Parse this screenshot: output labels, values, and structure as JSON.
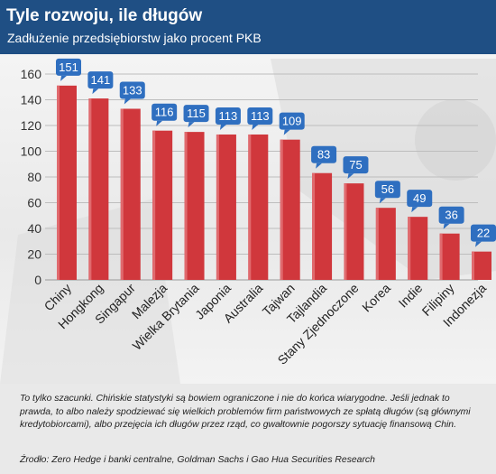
{
  "header": {
    "title": "Tyle rozwoju, ile długów",
    "subtitle": "Zadłużenie przedsiębiorstw jako procent PKB"
  },
  "footer": {
    "note": "To tylko szacunki. Chińskie statystyki są bowiem ograniczone i nie do końca wiarygodne. Jeśli jednak to prawda, to albo należy spodziewać się wielkich problemów firm państwowych ze spłatą długów (są głównymi kredytobiorcami), albo przejęcia ich długów przez rząd, co gwałtownie pogorszy sytuację finansową Chin.",
    "source": "Źrodło: Zero Hedge i banki centralne, Goldman Sachs i Gao Hua Securities Research"
  },
  "colors": {
    "header_bg": "#1f4f84",
    "bar": "#d0373c",
    "label_bg": "#2f6fc0"
  },
  "chart_data": {
    "type": "bar",
    "categories": [
      "Chiny",
      "Hongkong",
      "Singapur",
      "Malezja",
      "Wielka Brytania",
      "Japonia",
      "Australia",
      "Tajwan",
      "Tajlandia",
      "Stany Zjednoczone",
      "Korea",
      "Indie",
      "Filipiny",
      "Indonezja"
    ],
    "values": [
      151,
      141,
      133,
      116,
      115,
      113,
      113,
      109,
      83,
      75,
      56,
      49,
      36,
      22
    ],
    "ylim": [
      0,
      160
    ],
    "yticks": [
      0,
      20,
      40,
      60,
      80,
      100,
      120,
      140,
      160
    ],
    "grid": true,
    "legend": "none"
  }
}
